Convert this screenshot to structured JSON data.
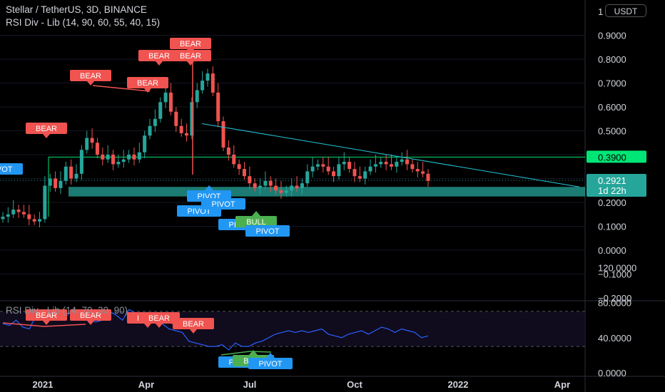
{
  "header": {
    "symbol_line": "Stellar / TetherUS, 3D, BINANCE",
    "indicator_line": "RSI Div - Lib (14, 90, 60, 55, 40, 15)",
    "rsi_indicator_line": "RSI Div - Lib (14, 70, 30, 90)"
  },
  "currency_badge": "USDT",
  "price_axis": {
    "ticks": [
      "1",
      "0.9000",
      "0.8000",
      "0.7000",
      "0.6000",
      "0.5000",
      "0.4000",
      "0.3000",
      "0.2000",
      "0.1000",
      "0.0000",
      "−0.1000",
      "−0.2000"
    ]
  },
  "rsi_axis": {
    "ticks": [
      "120.0000",
      "80.0000",
      "40.0000",
      "0.0000"
    ]
  },
  "time_axis": {
    "ticks": [
      "2021",
      "Apr",
      "Jul",
      "Oct",
      "2022",
      "Apr"
    ]
  },
  "price_tags": {
    "level": {
      "text": "0.3900",
      "color": "#00e676"
    },
    "last": {
      "text": "0.2921",
      "countdown": "1d 22h",
      "color": "#26a69a"
    }
  },
  "labels": {
    "bear": "BEAR",
    "bull": "BULL",
    "pivot": "PIVOT"
  },
  "colors": {
    "up": "#26a69a",
    "down": "#ef5350",
    "bear": "#f05350",
    "bull": "#4caf50",
    "pivot": "#2196f3",
    "trendline": "#26c6da",
    "resistance": "#00e676",
    "rsi_line": "#2962ff"
  },
  "chart_data": [
    {
      "type": "candlestick",
      "title": "Stellar / TetherUS, 3D, BINANCE",
      "ylim": [
        -0.2,
        1.0
      ],
      "x_range": [
        "2020-10",
        "2022-05"
      ],
      "series": [
        {
          "name": "XLMUSDT",
          "close": [
            0.14,
            0.15,
            0.17,
            0.16,
            0.15,
            0.13,
            0.12,
            0.13,
            0.27,
            0.3,
            0.26,
            0.29,
            0.35,
            0.3,
            0.32,
            0.42,
            0.47,
            0.45,
            0.4,
            0.38,
            0.4,
            0.36,
            0.37,
            0.38,
            0.4,
            0.38,
            0.41,
            0.48,
            0.52,
            0.55,
            0.62,
            0.66,
            0.58,
            0.52,
            0.49,
            0.48,
            0.62,
            0.67,
            0.71,
            0.74,
            0.66,
            0.54,
            0.43,
            0.4,
            0.36,
            0.34,
            0.31,
            0.28,
            0.26,
            0.27,
            0.29,
            0.27,
            0.25,
            0.24,
            0.25,
            0.27,
            0.26,
            0.28,
            0.33,
            0.35,
            0.36,
            0.35,
            0.33,
            0.31,
            0.36,
            0.37,
            0.34,
            0.31,
            0.3,
            0.33,
            0.35,
            0.36,
            0.37,
            0.36,
            0.35,
            0.37,
            0.38,
            0.36,
            0.34,
            0.33,
            0.32,
            0.29
          ]
        }
      ],
      "levels": {
        "resistance": 0.39,
        "support_zone": [
          0.225,
          0.265
        ],
        "last_price": 0.2921
      }
    },
    {
      "type": "line",
      "title": "RSI Div - Lib (14, 70, 30, 90)",
      "ylim": [
        0,
        120
      ],
      "bands": [
        30,
        70
      ],
      "series": [
        {
          "name": "RSI",
          "values": [
            56,
            54,
            60,
            52,
            50,
            66,
            64,
            70,
            62,
            60,
            68,
            70,
            64,
            60,
            58,
            60,
            70,
            66,
            60,
            72,
            68,
            64,
            66,
            58,
            56,
            50,
            48,
            46,
            36,
            34,
            32,
            30,
            30,
            32,
            26,
            34,
            30,
            30,
            34,
            36,
            40,
            44,
            46,
            48,
            46,
            48,
            46,
            48,
            50,
            44,
            42,
            40,
            44,
            46,
            48,
            44,
            48,
            52,
            50,
            46,
            50,
            48,
            46,
            40,
            42
          ]
        }
      ]
    }
  ]
}
